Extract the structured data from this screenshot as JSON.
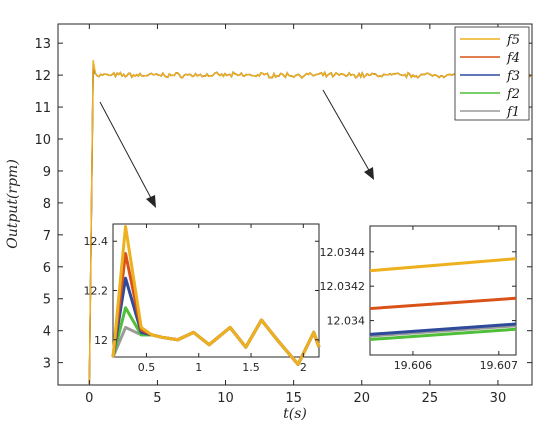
{
  "chart_data": [
    {
      "type": "line",
      "panel": "main",
      "xlabel": "t(s)",
      "ylabel": "Output(rpm)",
      "xlim": [
        -2.3,
        32.5
      ],
      "ylim": [
        2.3,
        13.6
      ],
      "xticks": [
        "0",
        "5",
        "10",
        "15",
        "20",
        "25",
        "30"
      ],
      "yticks": [
        "3",
        "4",
        "5",
        "6",
        "7",
        "8",
        "9",
        "10",
        "11",
        "12",
        "13"
      ],
      "legend_position": "top-right",
      "series": [
        {
          "name": "f5",
          "color": "#EDB120",
          "steady_state": 12.0,
          "peak": 12.47
        },
        {
          "name": "f4",
          "color": "#D95319",
          "steady_state": 12.0,
          "peak": 12.35
        },
        {
          "name": "f3",
          "color": "#2E4A9B",
          "steady_state": 12.0,
          "peak": 12.25
        },
        {
          "name": "f2",
          "color": "#4FBF3A",
          "steady_state": 12.0,
          "peak": 12.13
        },
        {
          "name": "f1",
          "color": "#9A9A9A",
          "steady_state": 12.0,
          "peak": 12.05
        }
      ]
    },
    {
      "type": "line",
      "panel": "inset-overshoot",
      "xlim": [
        0.18,
        2.15
      ],
      "ylim": [
        11.93,
        12.47
      ],
      "xticks": [
        "0.5",
        "1",
        "1.5",
        "2"
      ],
      "yticks": [
        "12",
        "12.2",
        "12.4"
      ],
      "x": [
        0.18,
        0.3,
        0.45,
        0.55,
        0.65,
        0.8,
        0.95,
        1.1,
        1.3,
        1.45,
        1.6,
        1.75,
        1.95,
        2.1,
        2.15
      ],
      "series": [
        {
          "name": "f5",
          "values": [
            11.93,
            12.46,
            12.05,
            12.02,
            12.01,
            12.0,
            12.03,
            11.98,
            12.05,
            11.97,
            12.08,
            12.0,
            11.9,
            12.03,
            11.97
          ]
        },
        {
          "name": "f4",
          "values": [
            11.93,
            12.35,
            12.04,
            12.02,
            12.01,
            12.0,
            12.03,
            11.98,
            12.05,
            11.97,
            12.08,
            12.0,
            11.9,
            12.03,
            11.97
          ]
        },
        {
          "name": "f3",
          "values": [
            11.93,
            12.25,
            12.03,
            12.02,
            12.01,
            12.0,
            12.03,
            11.98,
            12.05,
            11.97,
            12.08,
            12.0,
            11.9,
            12.03,
            11.97
          ]
        },
        {
          "name": "f2",
          "values": [
            11.93,
            12.13,
            12.02,
            12.02,
            12.01,
            12.0,
            12.03,
            11.98,
            12.05,
            11.97,
            12.08,
            12.0,
            11.9,
            12.03,
            11.97
          ]
        },
        {
          "name": "f1",
          "values": [
            11.93,
            12.05,
            12.02,
            12.02,
            12.01,
            12.0,
            12.03,
            11.98,
            12.05,
            11.97,
            12.08,
            12.0,
            11.9,
            12.03,
            11.97
          ]
        }
      ]
    },
    {
      "type": "line",
      "panel": "inset-steady",
      "xlim": [
        19.6055,
        19.6072
      ],
      "ylim": [
        12.0338,
        12.03455
      ],
      "xticks": [
        "19.606",
        "19.607"
      ],
      "yticks": [
        "12.034",
        "12.0342",
        "12.0344"
      ],
      "x": [
        19.6055,
        19.6072
      ],
      "series": [
        {
          "name": "f5",
          "values": [
            12.03429,
            12.03436
          ]
        },
        {
          "name": "f4",
          "values": [
            12.03407,
            12.03413
          ]
        },
        {
          "name": "f3",
          "values": [
            12.03392,
            12.03398
          ]
        },
        {
          "name": "f2",
          "values": [
            12.03389,
            12.03395
          ]
        },
        {
          "name": "f1",
          "values": [
            12.03391,
            12.03397
          ]
        }
      ]
    }
  ]
}
